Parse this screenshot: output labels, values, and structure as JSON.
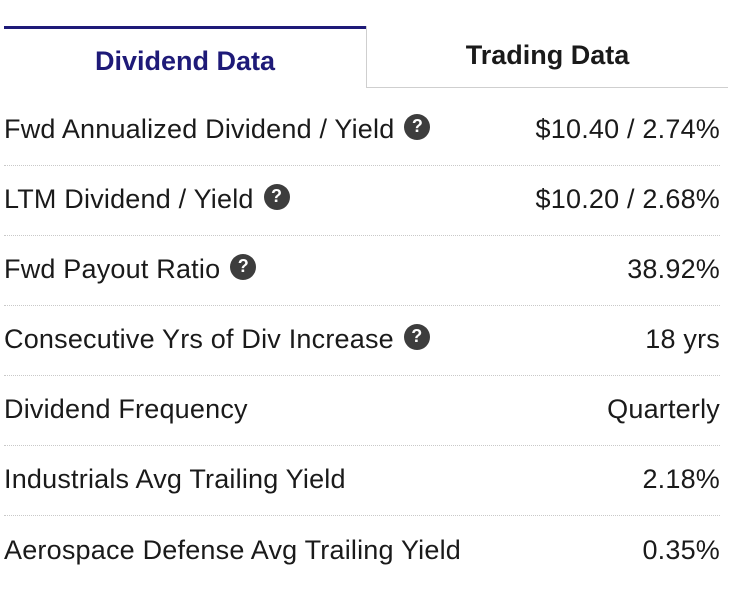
{
  "tabs": [
    {
      "label": "Dividend Data",
      "active": true
    },
    {
      "label": "Trading Data",
      "active": false
    }
  ],
  "rows": [
    {
      "label": "Fwd Annualized Dividend / Yield",
      "value": "$10.40 / 2.74%",
      "help_icon": "question-circle-icon"
    },
    {
      "label": "LTM Dividend / Yield",
      "value": "$10.20 / 2.68%",
      "help_icon": "question-circle-icon"
    },
    {
      "label": "Fwd Payout Ratio",
      "value": "38.92%",
      "help_icon": "question-circle-icon"
    },
    {
      "label": "Consecutive Yrs of Div Increase",
      "value": "18 yrs",
      "help_icon": "question-circle-icon"
    },
    {
      "label": "Dividend Frequency",
      "value": "Quarterly"
    },
    {
      "label": "Industrials Avg Trailing Yield",
      "value": "2.18%"
    },
    {
      "label": "Aerospace Defense Avg Trailing Yield",
      "value": "0.35%"
    }
  ],
  "colors": {
    "active_tab": "#1e1a78",
    "text": "#1a1a1a",
    "help_icon_bg": "#3d3d3d"
  }
}
